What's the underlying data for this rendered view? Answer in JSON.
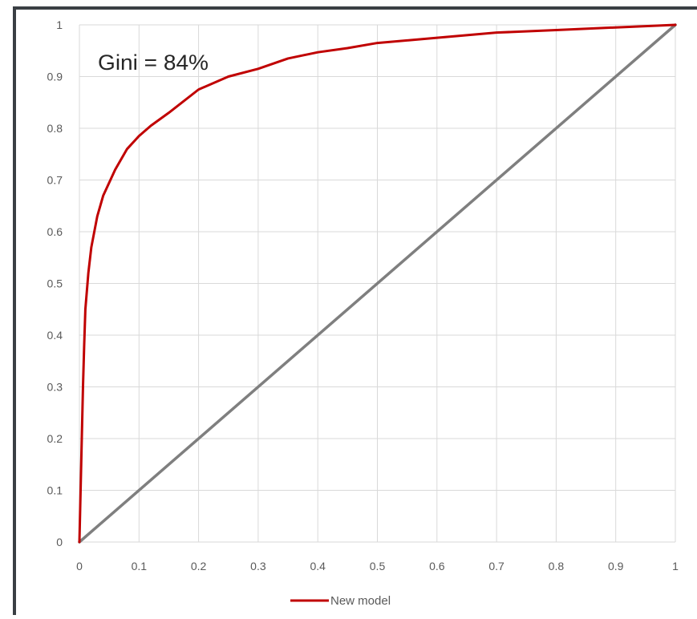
{
  "chart_data": {
    "type": "line",
    "title": "",
    "xlabel": "",
    "ylabel": "",
    "xlim": [
      0,
      1
    ],
    "ylim": [
      0,
      1
    ],
    "x_ticks": [
      "0",
      "0.1",
      "0.2",
      "0.3",
      "0.4",
      "0.5",
      "0.6",
      "0.7",
      "0.8",
      "0.9",
      "1"
    ],
    "y_ticks": [
      "0",
      "0.1",
      "0.2",
      "0.3",
      "0.4",
      "0.5",
      "0.6",
      "0.7",
      "0.8",
      "0.9",
      "1"
    ],
    "grid": true,
    "legend_position": "bottom",
    "annotation": "Gini = 84%",
    "series": [
      {
        "name": "New model",
        "color": "#c00000",
        "points": [
          [
            0,
            0
          ],
          [
            0.002,
            0.1
          ],
          [
            0.004,
            0.2
          ],
          [
            0.006,
            0.3
          ],
          [
            0.008,
            0.38
          ],
          [
            0.01,
            0.45
          ],
          [
            0.015,
            0.52
          ],
          [
            0.02,
            0.57
          ],
          [
            0.03,
            0.63
          ],
          [
            0.04,
            0.67
          ],
          [
            0.06,
            0.72
          ],
          [
            0.08,
            0.76
          ],
          [
            0.1,
            0.785
          ],
          [
            0.12,
            0.805
          ],
          [
            0.15,
            0.83
          ],
          [
            0.2,
            0.875
          ],
          [
            0.25,
            0.9
          ],
          [
            0.3,
            0.915
          ],
          [
            0.35,
            0.935
          ],
          [
            0.4,
            0.947
          ],
          [
            0.45,
            0.955
          ],
          [
            0.5,
            0.965
          ],
          [
            0.6,
            0.975
          ],
          [
            0.7,
            0.985
          ],
          [
            0.8,
            0.99
          ],
          [
            0.9,
            0.995
          ],
          [
            1,
            1
          ]
        ]
      },
      {
        "name": "",
        "color": "#7f7f7f",
        "points": [
          [
            0,
            0
          ],
          [
            1,
            1
          ]
        ]
      }
    ]
  }
}
